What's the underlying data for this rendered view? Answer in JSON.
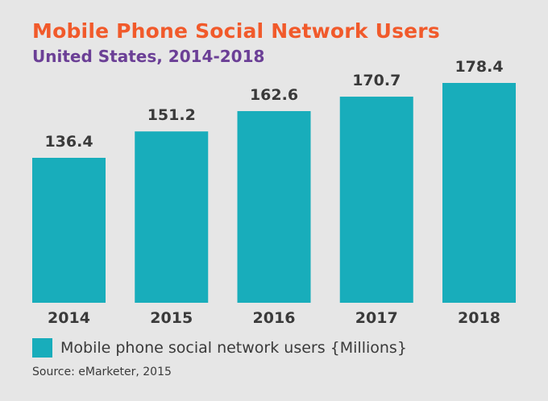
{
  "chart_data": {
    "type": "bar",
    "title": "Mobile Phone Social Network Users",
    "subtitle": "United States, 2014-2018",
    "categories": [
      "2014",
      "2015",
      "2016",
      "2017",
      "2018"
    ],
    "series": [
      {
        "name": "Mobile phone social network users {Millions}",
        "values": [
          136.4,
          151.2,
          162.6,
          170.7,
          178.4
        ]
      }
    ],
    "data_labels": [
      "136.4",
      "151.2",
      "162.6",
      "170.7",
      "178.4"
    ],
    "ylim": [
      55.1,
      178.4
    ],
    "grid": false,
    "legend": "bottom-left",
    "bar_color": "#18adbb",
    "title_color": "#f15a2b",
    "subtitle_color": "#6b3f96",
    "source": "Source: eMarketer, 2015"
  }
}
